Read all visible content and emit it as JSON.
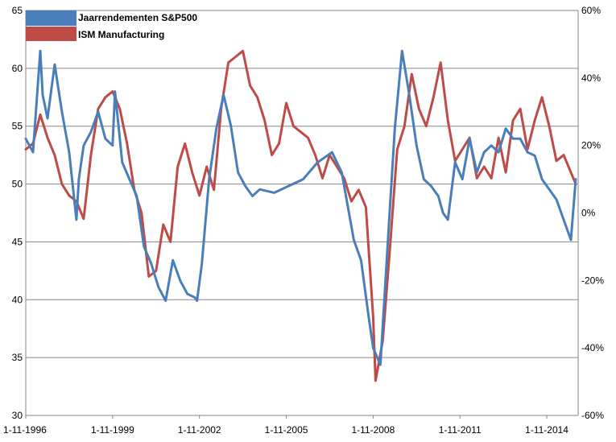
{
  "chart_data": {
    "type": "line",
    "title": "",
    "xlabel": "",
    "ylabel": "",
    "grid": true,
    "legend_position": "top-left",
    "x_tick_labels": [
      "1-11-1996",
      "1-11-1999",
      "1-11-2002",
      "1-11-2005",
      "1-11-2008",
      "1-11-2011",
      "1-11-2014"
    ],
    "y_left": {
      "min": 30,
      "max": 65,
      "ticks": [
        "30",
        "35",
        "40",
        "45",
        "50",
        "55",
        "60",
        "65"
      ]
    },
    "y_right": {
      "min": -0.6,
      "max": 0.6,
      "ticks": [
        "-60%",
        "-40%",
        "-20%",
        "0%",
        "20%",
        "40%",
        "60%"
      ]
    },
    "series": [
      {
        "name": "Jaarrendementen S&P500",
        "axis": "right",
        "color": "#4a7ebb",
        "x": [
          "1996-11",
          "1997-02",
          "1997-05",
          "1997-06",
          "1997-08",
          "1997-11",
          "1998-02",
          "1998-05",
          "1998-08",
          "1998-09",
          "1998-11",
          "1999-02",
          "1999-05",
          "1999-08",
          "1999-11",
          "1999-12",
          "2000-03",
          "2000-06",
          "2000-09",
          "2000-12",
          "2001-03",
          "2001-06",
          "2001-09",
          "2001-12",
          "2002-03",
          "2002-06",
          "2002-09",
          "2002-10",
          "2002-12",
          "2003-03",
          "2003-06",
          "2003-09",
          "2003-12",
          "2004-03",
          "2004-06",
          "2004-09",
          "2004-12",
          "2005-06",
          "2005-12",
          "2006-06",
          "2006-12",
          "2007-06",
          "2007-10",
          "2007-12",
          "2008-03",
          "2008-06",
          "2008-09",
          "2008-11",
          "2009-02",
          "2009-05",
          "2009-08",
          "2009-11",
          "2010-02",
          "2010-05",
          "2010-08",
          "2010-11",
          "2011-02",
          "2011-04",
          "2011-06",
          "2011-09",
          "2011-12",
          "2012-03",
          "2012-06",
          "2012-09",
          "2012-12",
          "2013-03",
          "2013-06",
          "2013-09",
          "2013-12",
          "2014-03",
          "2014-06",
          "2014-09",
          "2014-12",
          "2015-03",
          "2015-06",
          "2015-09",
          "2015-11"
        ],
        "y": [
          0.22,
          0.18,
          0.48,
          0.35,
          0.28,
          0.44,
          0.3,
          0.18,
          -0.02,
          0.1,
          0.2,
          0.24,
          0.3,
          0.22,
          0.2,
          0.36,
          0.15,
          0.1,
          0.05,
          -0.1,
          -0.15,
          -0.22,
          -0.26,
          -0.14,
          -0.2,
          -0.24,
          -0.25,
          -0.26,
          -0.15,
          0.1,
          0.25,
          0.35,
          0.26,
          0.12,
          0.08,
          0.05,
          0.07,
          0.06,
          0.08,
          0.1,
          0.15,
          0.18,
          0.12,
          0.04,
          -0.08,
          -0.14,
          -0.3,
          -0.4,
          -0.45,
          -0.1,
          0.25,
          0.48,
          0.35,
          0.2,
          0.1,
          0.08,
          0.05,
          0.0,
          -0.02,
          0.15,
          0.1,
          0.22,
          0.12,
          0.18,
          0.2,
          0.18,
          0.25,
          0.22,
          0.22,
          0.18,
          0.17,
          0.1,
          0.07,
          0.04,
          -0.02,
          -0.08,
          0.1
        ]
      },
      {
        "name": "ISM Manufacturing",
        "axis": "left",
        "color": "#be4b48",
        "x": [
          "1996-11",
          "1997-02",
          "1997-05",
          "1997-08",
          "1997-11",
          "1998-02",
          "1998-05",
          "1998-08",
          "1998-11",
          "1999-02",
          "1999-05",
          "1999-08",
          "1999-11",
          "2000-02",
          "2000-05",
          "2000-08",
          "2000-11",
          "2001-02",
          "2001-05",
          "2001-08",
          "2001-11",
          "2002-02",
          "2002-05",
          "2002-08",
          "2002-11",
          "2003-02",
          "2003-05",
          "2003-08",
          "2003-11",
          "2004-02",
          "2004-05",
          "2004-08",
          "2004-11",
          "2005-02",
          "2005-05",
          "2005-08",
          "2005-11",
          "2006-02",
          "2006-05",
          "2006-08",
          "2006-11",
          "2007-02",
          "2007-05",
          "2007-08",
          "2007-11",
          "2008-02",
          "2008-05",
          "2008-08",
          "2008-11",
          "2008-12",
          "2009-03",
          "2009-06",
          "2009-09",
          "2009-12",
          "2010-03",
          "2010-06",
          "2010-09",
          "2010-12",
          "2011-03",
          "2011-06",
          "2011-09",
          "2011-12",
          "2012-03",
          "2012-06",
          "2012-09",
          "2012-12",
          "2013-03",
          "2013-06",
          "2013-09",
          "2013-12",
          "2014-03",
          "2014-06",
          "2014-09",
          "2014-12",
          "2015-03",
          "2015-06",
          "2015-09",
          "2015-11"
        ],
        "y": [
          53.0,
          53.5,
          56.0,
          54.0,
          52.5,
          50.0,
          49.0,
          48.5,
          47.0,
          52.5,
          56.5,
          57.5,
          58.0,
          56.5,
          53.5,
          49.5,
          47.5,
          42.0,
          42.5,
          46.5,
          45.0,
          51.5,
          53.5,
          51.0,
          49.0,
          51.5,
          49.5,
          56.5,
          60.5,
          61.0,
          61.5,
          58.5,
          57.5,
          55.5,
          52.5,
          53.5,
          57.0,
          55.0,
          54.5,
          54.0,
          52.5,
          50.5,
          52.5,
          51.5,
          50.5,
          48.5,
          49.5,
          48.0,
          38.5,
          33.0,
          36.5,
          44.5,
          53.0,
          55.0,
          59.5,
          56.5,
          55.0,
          57.5,
          60.5,
          55.5,
          52.0,
          53.0,
          54.0,
          50.5,
          51.5,
          50.5,
          54.0,
          51.0,
          55.5,
          56.5,
          53.0,
          55.5,
          57.5,
          55.0,
          52.0,
          52.5,
          51.0,
          50.0
        ]
      }
    ]
  }
}
